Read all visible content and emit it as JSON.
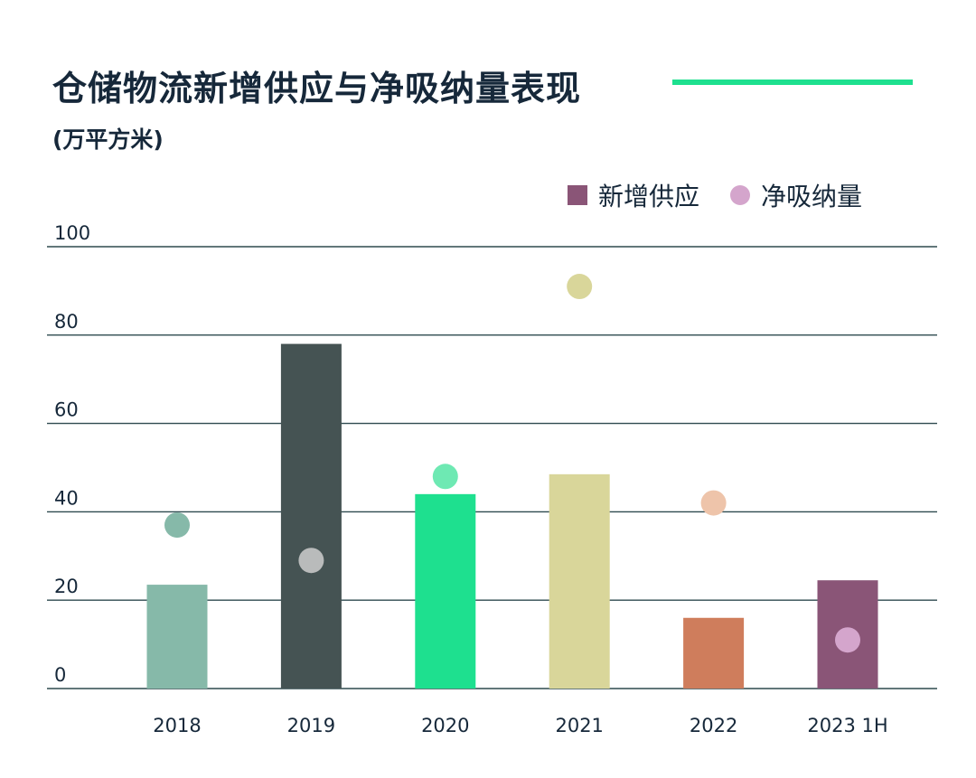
{
  "title": "仓储物流新增供应与净吸纳量表现",
  "unit_label": "(万平方米)",
  "colors": {
    "title": "#16283a",
    "accent_rule": "#1ee08f",
    "gridline": "#2e4a4f",
    "bars": [
      "#86b9a9",
      "#455353",
      "#1ee08f",
      "#d9d69a",
      "#cf7d5c",
      "#8a5577"
    ],
    "dots": [
      "#86b9a9",
      "#b9bbbb",
      "#6ee9b3",
      "#d9d69a",
      "#eec4aa",
      "#d4a5cc"
    ]
  },
  "legend": {
    "supply_label": "新增供应",
    "absorption_label": "净吸纳量",
    "supply_icon": "square-marker-icon",
    "absorption_icon": "circle-marker-icon"
  },
  "chart_data": {
    "type": "bar",
    "title": "仓储物流新增供应与净吸纳量表现",
    "ylabel": "(万平方米)",
    "xlabel": "",
    "categories": [
      "2018",
      "2019",
      "2020",
      "2021",
      "2022",
      "2023 1H"
    ],
    "ylim": [
      0,
      100
    ],
    "yticks": [
      "0",
      "20",
      "40",
      "60",
      "80",
      "100"
    ],
    "grid": true,
    "legend_position": "top-right",
    "series": [
      {
        "name": "新增供应",
        "mark": "bar",
        "values": [
          23.5,
          78,
          44,
          48.5,
          16,
          24.5
        ]
      },
      {
        "name": "净吸纳量",
        "mark": "dot",
        "values": [
          37,
          29,
          48,
          91,
          42,
          11
        ]
      }
    ]
  }
}
